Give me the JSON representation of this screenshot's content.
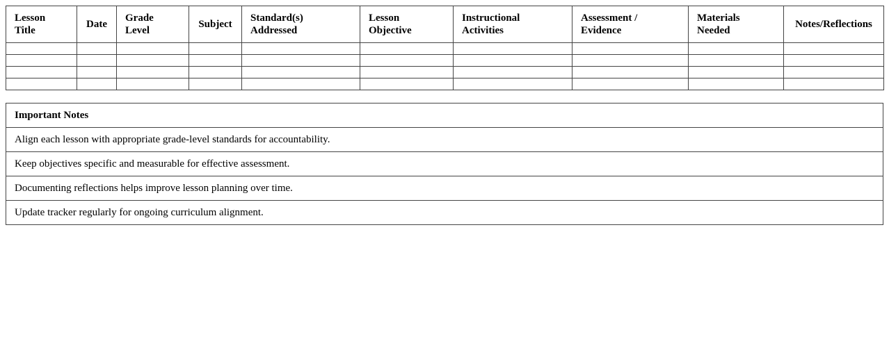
{
  "tracker": {
    "columns": [
      "Lesson Title",
      "Date",
      "Grade Level",
      "Subject",
      "Standard(s) Addressed",
      "Lesson Objective",
      "Instructional Activities",
      "Assessment / Evidence",
      "Materials Needed",
      "Notes/Reflections"
    ]
  },
  "notes": {
    "title": "Important Notes",
    "items": [
      "Align each lesson with appropriate grade-level standards for accountability.",
      "Keep objectives specific and measurable for effective assessment.",
      "Documenting reflections helps improve lesson planning over time.",
      "Update tracker regularly for ongoing curriculum alignment."
    ]
  }
}
